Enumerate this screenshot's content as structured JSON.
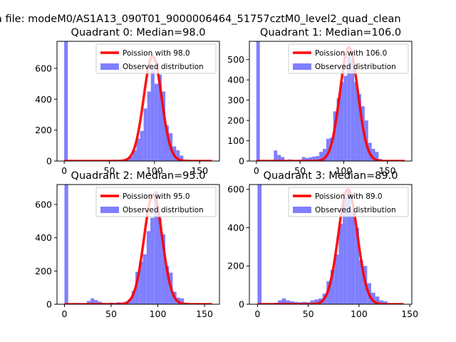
{
  "suptitle": "a file: modeM0/AS1A13_090T01_9000006464_51757cztM0_level2_quad_clean",
  "legend": {
    "observed_label": "Observed distribution"
  },
  "colors": {
    "poisson_line": "#ff0000",
    "histogram": "#7f7fff",
    "axes": "#000000",
    "background": "#ffffff"
  },
  "chart_data": [
    {
      "type": "bar",
      "title": "Quadrant 0: Median=98.0",
      "poisson_label": "Poission with 98.0",
      "poisson_mean": 98.0,
      "poisson_peak": 680,
      "xlim": [
        -8,
        172
      ],
      "ylim": [
        0,
        775
      ],
      "xticks": [
        0,
        50,
        100,
        150
      ],
      "yticks": [
        0,
        200,
        400,
        600
      ],
      "bin_width": 4,
      "bin_starts": [
        0,
        52,
        56,
        60,
        64,
        68,
        72,
        76,
        80,
        84,
        88,
        92,
        96,
        100,
        104,
        108,
        112,
        116,
        120,
        124,
        128,
        132
      ],
      "counts": [
        775,
        4,
        3,
        5,
        8,
        12,
        30,
        70,
        145,
        195,
        340,
        450,
        605,
        500,
        560,
        450,
        230,
        180,
        95,
        70,
        35,
        10
      ],
      "legend_position": "top-right",
      "grid": false
    },
    {
      "type": "bar",
      "title": "Quadrant 1: Median=106.0",
      "poisson_label": "Poission with 106.0",
      "poisson_mean": 106.0,
      "poisson_peak": 560,
      "xlim": [
        -8,
        178
      ],
      "ylim": [
        0,
        590
      ],
      "xticks": [
        0,
        50,
        100,
        150
      ],
      "yticks": [
        0,
        100,
        200,
        300,
        400,
        500
      ],
      "bin_width": 4,
      "bin_starts": [
        0,
        16,
        20,
        24,
        28,
        36,
        40,
        48,
        52,
        56,
        60,
        64,
        68,
        72,
        76,
        80,
        84,
        88,
        92,
        96,
        100,
        104,
        108,
        112,
        116,
        120,
        124,
        128,
        132,
        136,
        140
      ],
      "counts": [
        590,
        2,
        52,
        30,
        20,
        8,
        4,
        6,
        20,
        15,
        18,
        22,
        25,
        45,
        60,
        110,
        115,
        245,
        310,
        390,
        420,
        520,
        500,
        390,
        330,
        270,
        200,
        90,
        60,
        45,
        10
      ],
      "legend_position": "top-right",
      "grid": false
    },
    {
      "type": "bar",
      "title": "Quadrant 2: Median=95.0",
      "poisson_label": "Poission with 95.0",
      "poisson_mean": 95.0,
      "poisson_peak": 660,
      "xlim": [
        -8,
        166
      ],
      "ylim": [
        0,
        720
      ],
      "xticks": [
        0,
        50,
        100,
        150
      ],
      "yticks": [
        0,
        200,
        400,
        600
      ],
      "bin_width": 4,
      "bin_starts": [
        0,
        20,
        24,
        28,
        32,
        36,
        40,
        44,
        48,
        52,
        56,
        60,
        64,
        68,
        72,
        76,
        80,
        84,
        88,
        92,
        96,
        100,
        104,
        108,
        112,
        116,
        120,
        124,
        128,
        132
      ],
      "counts": [
        720,
        5,
        20,
        35,
        25,
        15,
        8,
        5,
        10,
        8,
        12,
        10,
        15,
        30,
        80,
        195,
        255,
        300,
        440,
        520,
        680,
        520,
        420,
        230,
        190,
        75,
        40,
        35,
        10,
        5
      ],
      "legend_position": "top-right",
      "grid": false
    },
    {
      "type": "bar",
      "title": "Quadrant 3: Median=89.0",
      "poisson_label": "Poission with 89.0",
      "poisson_mean": 89.0,
      "poisson_peak": 600,
      "xlim": [
        -8,
        152
      ],
      "ylim": [
        0,
        625
      ],
      "xticks": [
        0,
        50,
        100,
        150
      ],
      "yticks": [
        0,
        200,
        400,
        600
      ],
      "bin_width": 4,
      "bin_starts": [
        0,
        16,
        20,
        24,
        28,
        32,
        36,
        40,
        44,
        48,
        52,
        56,
        60,
        64,
        68,
        72,
        76,
        80,
        84,
        88,
        92,
        96,
        100,
        104,
        108,
        112,
        116,
        120,
        124,
        128
      ],
      "counts": [
        625,
        8,
        20,
        30,
        20,
        15,
        12,
        10,
        12,
        10,
        20,
        25,
        30,
        55,
        120,
        180,
        260,
        420,
        560,
        600,
        490,
        400,
        230,
        200,
        110,
        60,
        40,
        20,
        15,
        5
      ],
      "legend_position": "top-right",
      "grid": false
    }
  ]
}
